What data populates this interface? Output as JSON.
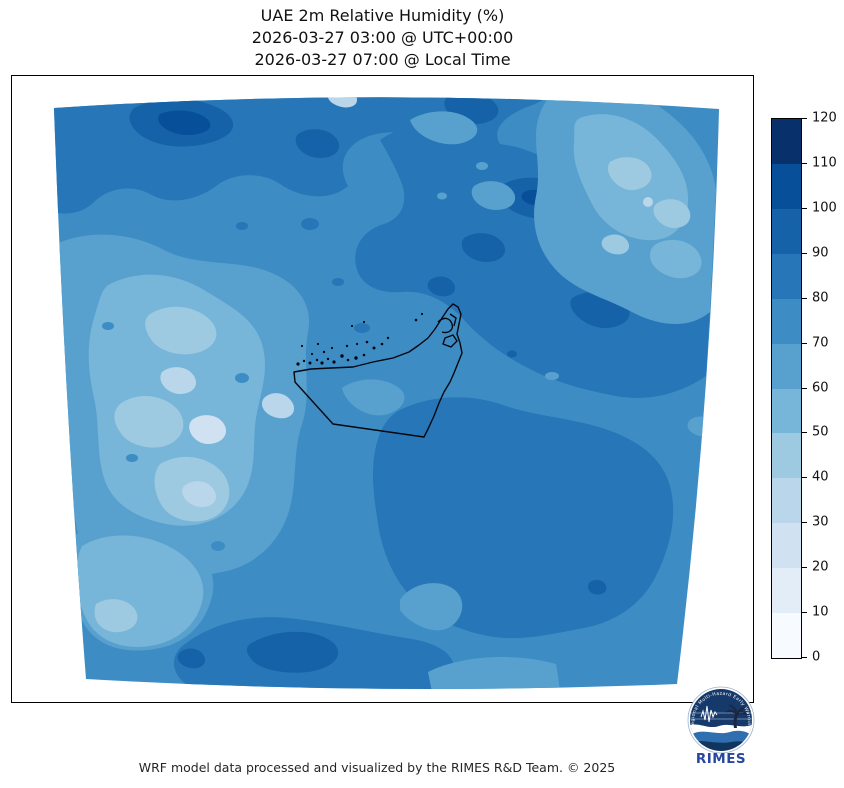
{
  "title": {
    "line1": "UAE 2m Relative Humidity (%)",
    "line2": "2026-03-27 03:00 @ UTC+00:00",
    "line3": "2026-03-27 07:00 @ Local Time"
  },
  "footer": "WRF model data processed and visualized by the RIMES R&D Team. © 2025",
  "logo": {
    "org": "RIMES",
    "rim_text": "Regional Multi-Hazard Early Warning System"
  },
  "colorbar": {
    "ticks": [
      0,
      10,
      20,
      30,
      40,
      50,
      60,
      70,
      80,
      90,
      100,
      110,
      120
    ],
    "colors": [
      "#f7fbff",
      "#e2edf8",
      "#d0e1f2",
      "#b9d6ea",
      "#9dc9e1",
      "#77b5d9",
      "#58a1cf",
      "#3d8dc4",
      "#2777b8",
      "#1562a9",
      "#084f99",
      "#08306b"
    ],
    "min": 0,
    "max": 120
  },
  "chart_data": {
    "type": "heatmap",
    "subtype": "filled-contour-weather-map",
    "title": "UAE 2m Relative Humidity (%)",
    "time_utc": "2026-03-27 03:00 @ UTC+00:00",
    "time_local": "2026-03-27 07:00 @ Local Time",
    "variable": "2m Relative Humidity",
    "units": "%",
    "colorbar_ticks": [
      0,
      10,
      20,
      30,
      40,
      50,
      60,
      70,
      80,
      90,
      100,
      110,
      120
    ],
    "level_colors": [
      "#f7fbff",
      "#e2edf8",
      "#d0e1f2",
      "#b9d6ea",
      "#9dc9e1",
      "#77b5d9",
      "#58a1cf",
      "#3d8dc4",
      "#2777b8",
      "#1562a9",
      "#084f99",
      "#08306b"
    ],
    "legend_position": "right",
    "overlay": "UAE administrative boundary and coastline in black",
    "approx_region_values": [
      {
        "region": "northern band (upper third of domain)",
        "rh_percent": "80-100"
      },
      {
        "region": "dark maximum patch north-west",
        "rh_percent": "100-110"
      },
      {
        "region": "north-east corner",
        "rh_percent": "40-60"
      },
      {
        "region": "west / central-left corridor",
        "rh_percent": "30-60"
      },
      {
        "region": "lightest west-central pockets",
        "rh_percent": "20-30"
      },
      {
        "region": "south-east quadrant mass",
        "rh_percent": "80-90"
      },
      {
        "region": "southern bottom band",
        "rh_percent": "80-100"
      },
      {
        "region": "UAE land area",
        "rh_percent": "60-80"
      }
    ]
  }
}
